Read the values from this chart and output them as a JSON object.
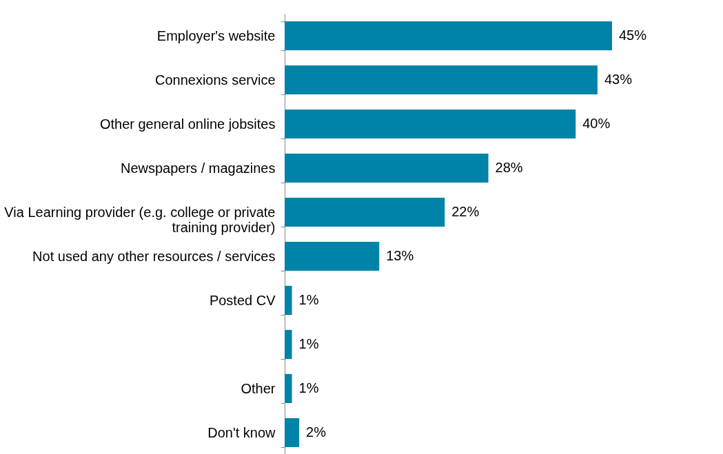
{
  "chart_data": {
    "type": "bar",
    "orientation": "horizontal",
    "categories": [
      "Employer's website",
      "Connexions service",
      "Other general online jobsites",
      "Newspapers / magazines",
      "Via Learning provider (e.g. college or private training provider)",
      "Not used any other resources / services",
      "Posted CV",
      null,
      "Other",
      "Don't know"
    ],
    "values": [
      45,
      43,
      40,
      28,
      22,
      13,
      1,
      1,
      1,
      2
    ],
    "value_labels": [
      "45%",
      "43%",
      "40%",
      "28%",
      "22%",
      "13%",
      "1%",
      "1%",
      "1%",
      "2%"
    ],
    "color": "#0083a8"
  }
}
